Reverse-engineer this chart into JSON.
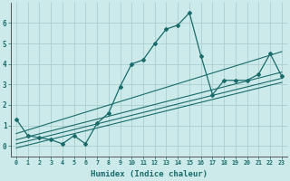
{
  "xlabel": "Humidex (Indice chaleur)",
  "background_color": "#cceaea",
  "grid_color": "#aacece",
  "line_color": "#1a6b6b",
  "x_data": [
    0,
    1,
    2,
    3,
    4,
    5,
    6,
    7,
    8,
    9,
    10,
    11,
    12,
    13,
    14,
    15,
    16,
    17,
    18,
    19,
    20,
    21,
    22,
    23
  ],
  "y_main": [
    1.3,
    0.5,
    0.4,
    0.3,
    0.1,
    0.5,
    0.1,
    1.1,
    1.6,
    2.9,
    4.0,
    4.2,
    5.0,
    5.7,
    5.9,
    6.5,
    4.4,
    2.5,
    3.2,
    3.2,
    3.2,
    3.5,
    4.5,
    3.4
  ],
  "xlim": [
    -0.5,
    23.5
  ],
  "ylim": [
    -0.5,
    7.0
  ],
  "yticks": [
    0,
    1,
    2,
    3,
    4,
    5,
    6
  ],
  "xticks": [
    0,
    1,
    2,
    3,
    4,
    5,
    6,
    7,
    8,
    9,
    10,
    11,
    12,
    13,
    14,
    15,
    16,
    17,
    18,
    19,
    20,
    21,
    22,
    23
  ],
  "reg_lines": [
    {
      "x0": 0,
      "y0": -0.1,
      "x1": 23,
      "y1": 3.1
    },
    {
      "x0": 0,
      "y0": 0.1,
      "x1": 23,
      "y1": 3.3
    },
    {
      "x0": 0,
      "y0": 0.3,
      "x1": 23,
      "y1": 3.6
    },
    {
      "x0": 0,
      "y0": 0.6,
      "x1": 23,
      "y1": 4.6
    }
  ]
}
